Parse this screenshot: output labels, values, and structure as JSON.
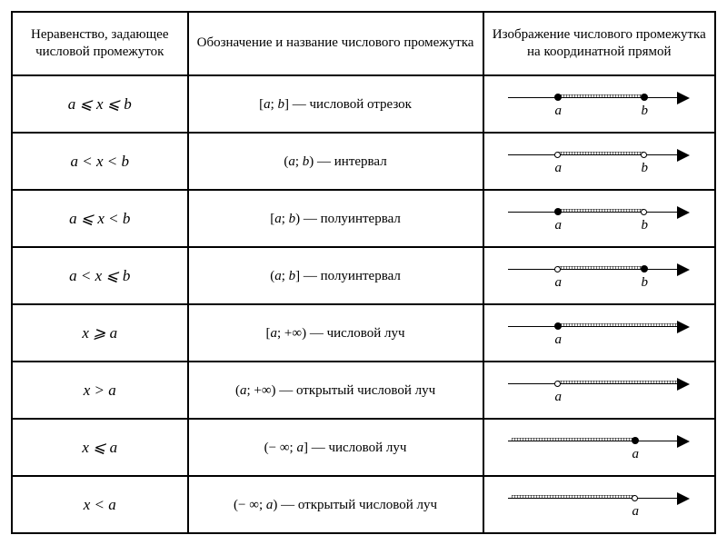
{
  "headers": {
    "c1": "Неравенство, задающее числовой промежуток",
    "c2": "Обозначение и название числового промежутка",
    "c3": "Изображение числового промежутка на координатной прямой"
  },
  "rows": [
    {
      "ineq": "a ⩽ x ⩽ b",
      "notation": "[a; b] — числовой отрезок",
      "diag": {
        "aPos": 55,
        "bPos": 150,
        "aType": "closed",
        "bType": "closed",
        "shadeFrom": 55,
        "shadeTo": 150,
        "labels": [
          [
            "a",
            55
          ],
          [
            "b",
            150
          ]
        ]
      }
    },
    {
      "ineq": "a < x < b",
      "notation": "(a; b) — интервал",
      "diag": {
        "aPos": 55,
        "bPos": 150,
        "aType": "open",
        "bType": "open",
        "shadeFrom": 55,
        "shadeTo": 150,
        "labels": [
          [
            "a",
            55
          ],
          [
            "b",
            150
          ]
        ]
      }
    },
    {
      "ineq": "a ⩽ x < b",
      "notation": "[a; b) — полуинтервал",
      "diag": {
        "aPos": 55,
        "bPos": 150,
        "aType": "closed",
        "bType": "open",
        "shadeFrom": 55,
        "shadeTo": 150,
        "labels": [
          [
            "a",
            55
          ],
          [
            "b",
            150
          ]
        ]
      }
    },
    {
      "ineq": "a < x ⩽ b",
      "notation": "(a; b] — полуинтервал",
      "diag": {
        "aPos": 55,
        "bPos": 150,
        "aType": "open",
        "bType": "closed",
        "shadeFrom": 55,
        "shadeTo": 150,
        "labels": [
          [
            "a",
            55
          ],
          [
            "b",
            150
          ]
        ]
      }
    },
    {
      "ineq": "x ⩾ a",
      "notation": "[a; +∞) — числовой луч",
      "diag": {
        "aPos": 55,
        "aType": "closed",
        "shadeFrom": 55,
        "shadeTo": 186,
        "labels": [
          [
            "a",
            55
          ]
        ]
      }
    },
    {
      "ineq": "x > a",
      "notation": "(a; +∞) — открытый числовой луч",
      "diag": {
        "aPos": 55,
        "aType": "open",
        "shadeFrom": 55,
        "shadeTo": 186,
        "labels": [
          [
            "a",
            55
          ]
        ]
      }
    },
    {
      "ineq": "x ⩽ a",
      "notation": "(− ∞; a] — числовой луч",
      "diag": {
        "aPos": 140,
        "aType": "closed",
        "shadeFrom": 4,
        "shadeTo": 140,
        "labels": [
          [
            "a",
            140
          ]
        ]
      }
    },
    {
      "ineq": "x < a",
      "notation": "(− ∞; a) — открытый числовой луч",
      "diag": {
        "aPos": 140,
        "aType": "open",
        "shadeFrom": 4,
        "shadeTo": 140,
        "labels": [
          [
            "a",
            140
          ]
        ]
      }
    }
  ]
}
